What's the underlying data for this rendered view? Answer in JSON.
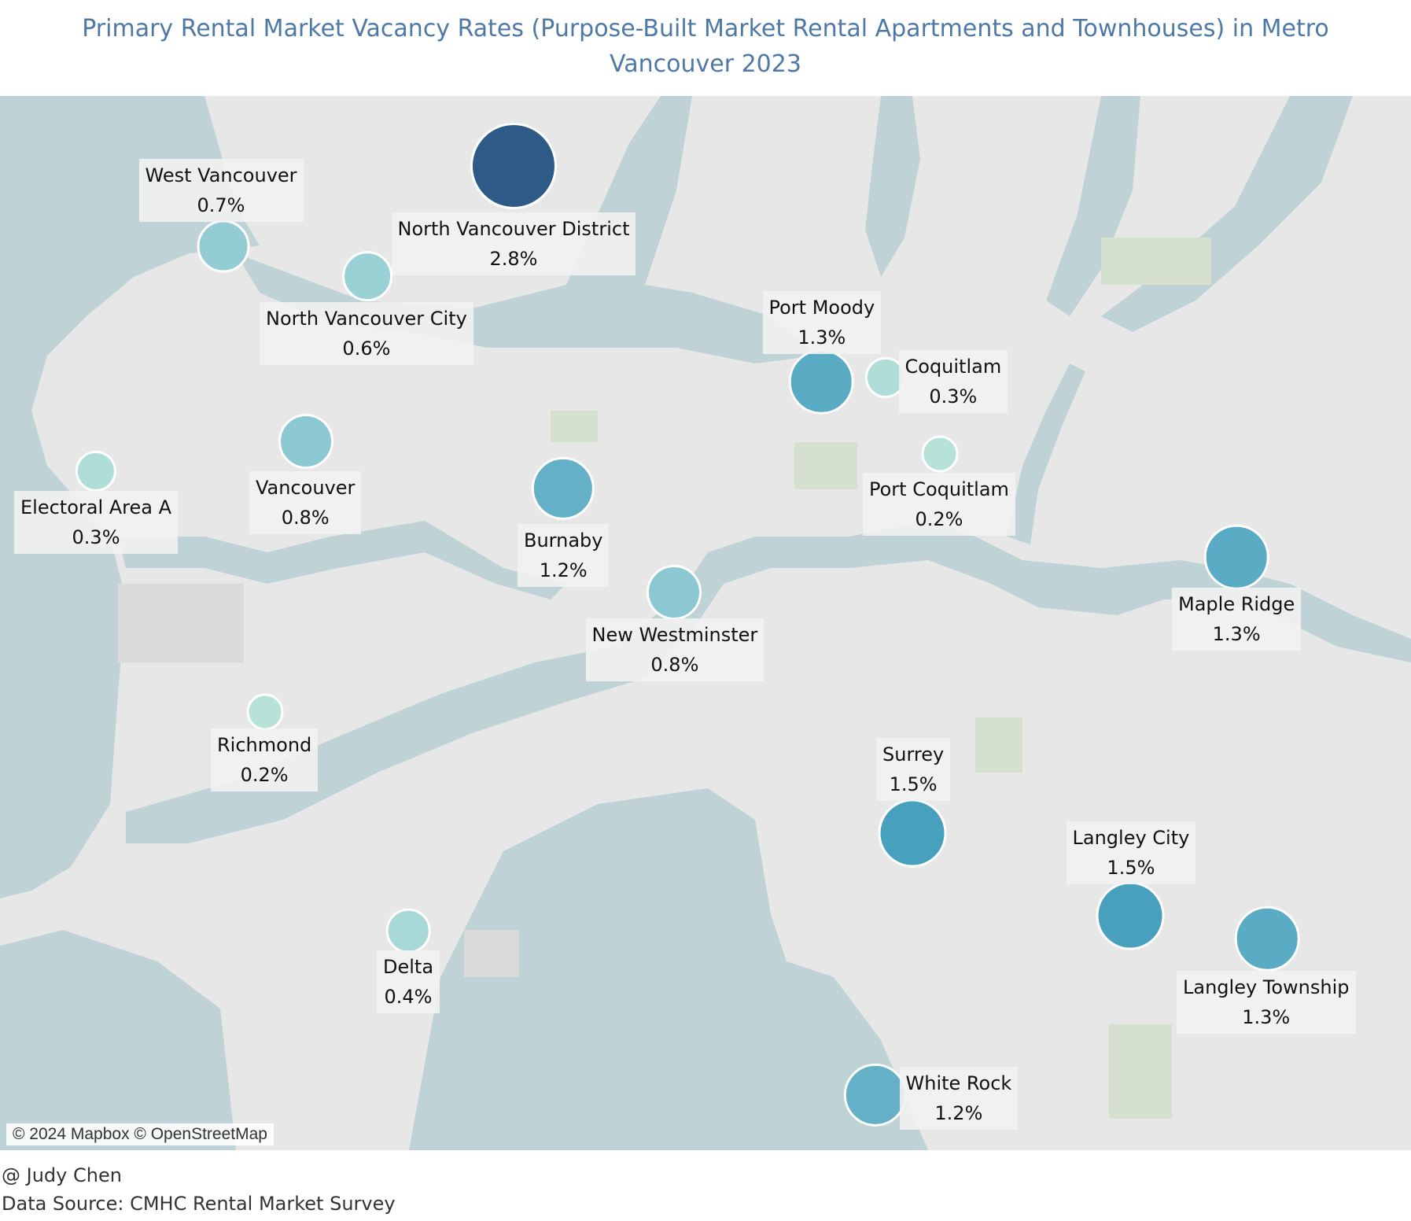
{
  "title": "Primary Rental Market Vacancy Rates (Purpose-Built Market Rental Apartments and Townhouses) in Metro Vancouver 2023",
  "attribution": "© 2024 Mapbox © OpenStreetMap",
  "author": "@ Judy Chen",
  "source": "Data Source: CMHC Rental Market Survey",
  "colors": {
    "low": "#b6e2d9",
    "mid": "#4aa8c0",
    "high": "#2d5a87",
    "water": "#bfd3d6",
    "land": "#e7e7e7",
    "park": "#d5e0cf"
  },
  "places": [
    {
      "name": "North Vancouver District",
      "value": "2.8%"
    },
    {
      "name": "West Vancouver",
      "value": "0.7%"
    },
    {
      "name": "North Vancouver City",
      "value": "0.6%"
    },
    {
      "name": "Port Moody",
      "value": "1.3%"
    },
    {
      "name": "Coquitlam",
      "value": "0.3%"
    },
    {
      "name": "Electoral Area A",
      "value": "0.3%"
    },
    {
      "name": "Vancouver",
      "value": "0.8%"
    },
    {
      "name": "Burnaby",
      "value": "1.2%"
    },
    {
      "name": "Port Coquitlam",
      "value": "0.2%"
    },
    {
      "name": "Maple Ridge",
      "value": "1.3%"
    },
    {
      "name": "New Westminster",
      "value": "0.8%"
    },
    {
      "name": "Richmond",
      "value": "0.2%"
    },
    {
      "name": "Surrey",
      "value": "1.5%"
    },
    {
      "name": "Langley City",
      "value": "1.5%"
    },
    {
      "name": "Langley Township",
      "value": "1.3%"
    },
    {
      "name": "Delta",
      "value": "0.4%"
    },
    {
      "name": "White Rock",
      "value": "1.2%"
    }
  ]
}
